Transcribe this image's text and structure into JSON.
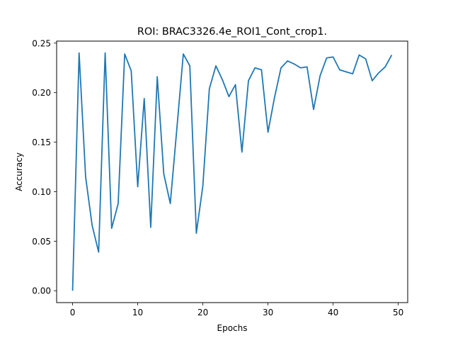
{
  "chart_data": {
    "type": "line",
    "title": "ROI: BRAC3326.4e_ROI1_Cont_crop1.",
    "xlabel": "Epochs",
    "ylabel": "Accuracy",
    "xlim": [
      -2.45,
      51.45
    ],
    "ylim": [
      -0.012,
      0.252
    ],
    "x_ticks": [
      0,
      10,
      20,
      30,
      40,
      50
    ],
    "y_ticks": [
      0.0,
      0.05,
      0.1,
      0.15,
      0.2,
      0.25
    ],
    "x_tick_labels": [
      "0",
      "10",
      "20",
      "30",
      "40",
      "50"
    ],
    "y_tick_labels": [
      "0.00",
      "0.05",
      "0.10",
      "0.15",
      "0.20",
      "0.25"
    ],
    "grid": false,
    "line_color": "#1f77b4",
    "series": [
      {
        "x": [
          0,
          1,
          2,
          3,
          4,
          5,
          6,
          7,
          8,
          9,
          10,
          11,
          12,
          13,
          14,
          15,
          16,
          17,
          18,
          19,
          20,
          21,
          22,
          23,
          24,
          25,
          26,
          27,
          28,
          29,
          30,
          31,
          32,
          33,
          34,
          35,
          36,
          37,
          38,
          39,
          40,
          41,
          42,
          43,
          44,
          45,
          46,
          47,
          48,
          49
        ],
        "values": [
          0.0,
          0.24,
          0.115,
          0.066,
          0.039,
          0.24,
          0.063,
          0.088,
          0.239,
          0.222,
          0.105,
          0.194,
          0.064,
          0.216,
          0.118,
          0.088,
          0.163,
          0.239,
          0.227,
          0.058,
          0.106,
          0.204,
          0.227,
          0.213,
          0.196,
          0.208,
          0.14,
          0.212,
          0.225,
          0.223,
          0.16,
          0.195,
          0.225,
          0.232,
          0.229,
          0.225,
          0.226,
          0.183,
          0.217,
          0.235,
          0.236,
          0.223,
          0.221,
          0.219,
          0.238,
          0.234,
          0.212,
          0.22,
          0.226,
          0.238
        ]
      }
    ]
  }
}
